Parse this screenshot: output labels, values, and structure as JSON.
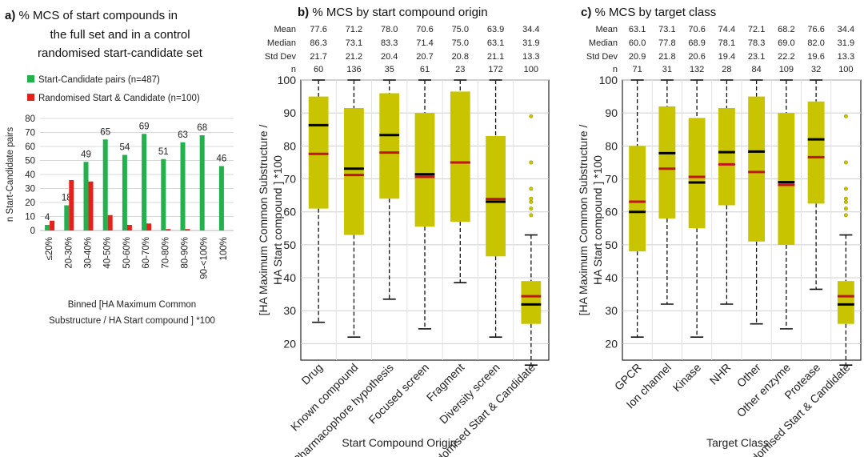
{
  "chart_data": [
    {
      "type": "bar",
      "panel_letter": "a)",
      "title_lines": [
        "% MCS of start compounds in",
        "the full set and in a control",
        "randomised start-candidate set"
      ],
      "ylabel": "n Start-Candidate pairs",
      "xlabel_lines": [
        "Binned [HA Maximum Common",
        "Substructure / HA Start compound ] *100"
      ],
      "ylim": [
        0,
        80
      ],
      "yticks": [
        0,
        10,
        20,
        30,
        40,
        50,
        60,
        70,
        80
      ],
      "grid": true,
      "legend_position": "top",
      "categories": [
        "≤20%",
        "20-30%",
        "30-40%",
        "40-50%",
        "50-60%",
        "60-70%",
        "70-80%",
        "80-90%",
        "90-<100%",
        "100%"
      ],
      "series": [
        {
          "name": "Start-Candidate pairs (n=487)",
          "color": "#22b14c",
          "values": [
            4,
            18,
            49,
            65,
            54,
            69,
            51,
            63,
            68,
            46
          ],
          "labels": [
            "4",
            "18",
            "49",
            "65",
            "54",
            "69",
            "51",
            "63",
            "68",
            "46"
          ]
        },
        {
          "name": "Randomised Start & Candidate (n=100)",
          "color": "#e8201c",
          "values": [
            7,
            36,
            35,
            11,
            4,
            5,
            1,
            1,
            0,
            0
          ]
        }
      ]
    },
    {
      "type": "box",
      "panel_letter": "b)",
      "title": "% MCS by start compound origin",
      "ylabel_lines": [
        "[HA Maximum Common Substructure /",
        "HA Start compound ] *100"
      ],
      "xlabel": "Start Compound Origin",
      "ylim": [
        15,
        100
      ],
      "yticks": [
        20,
        30,
        40,
        50,
        60,
        70,
        80,
        90,
        100
      ],
      "stats_rows": [
        {
          "label": "Mean",
          "values": [
            "77.6",
            "71.2",
            "78.0",
            "70.6",
            "75.0",
            "63.9",
            "34.4"
          ]
        },
        {
          "label": "Median",
          "values": [
            "86.3",
            "73.1",
            "83.3",
            "71.4",
            "75.0",
            "63.1",
            "31.9"
          ]
        },
        {
          "label": "Std Dev",
          "values": [
            "21.7",
            "21.2",
            "20.4",
            "20.7",
            "20.8",
            "21.1",
            "13.3"
          ]
        },
        {
          "label": "n",
          "values": [
            "60",
            "136",
            "35",
            "61",
            "23",
            "172",
            "100"
          ]
        }
      ],
      "categories": [
        "Drug",
        "Known compound",
        "Pharmacophore hypothesis",
        "Focused screen",
        "Fragment",
        "Diversity screen",
        "Randomised Start & Candidate"
      ],
      "boxes": [
        {
          "q1": 61,
          "q3": 95,
          "whisker_low": 26.5,
          "whisker_high": 100,
          "median": 86.3,
          "mean": 77.6,
          "outliers": []
        },
        {
          "q1": 53,
          "q3": 91.5,
          "whisker_low": 22,
          "whisker_high": 100,
          "median": 73.1,
          "mean": 71.2,
          "outliers": []
        },
        {
          "q1": 64,
          "q3": 96,
          "whisker_low": 33.5,
          "whisker_high": 100,
          "median": 83.3,
          "mean": 78.0,
          "outliers": []
        },
        {
          "q1": 55.5,
          "q3": 90,
          "whisker_low": 24.5,
          "whisker_high": 100,
          "median": 71.4,
          "mean": 70.6,
          "outliers": []
        },
        {
          "q1": 57,
          "q3": 96.5,
          "whisker_low": 38.5,
          "whisker_high": 100,
          "median": 75.0,
          "mean": 75.0,
          "outliers": []
        },
        {
          "q1": 46.5,
          "q3": 83,
          "whisker_low": 22,
          "whisker_high": 100,
          "median": 63.1,
          "mean": 63.9,
          "outliers": []
        },
        {
          "q1": 26,
          "q3": 39,
          "whisker_low": 13.5,
          "whisker_high": 53,
          "median": 31.9,
          "mean": 34.4,
          "outliers": [
            59,
            61,
            63,
            64,
            67,
            75,
            89
          ]
        }
      ],
      "box_color": "#c8c400",
      "median_color": "#000000",
      "mean_color": "#c0141e"
    },
    {
      "type": "box",
      "panel_letter": "c)",
      "title": "% MCS by target class",
      "ylabel_lines": [
        "[HA Maximum Common Substructure /",
        "HA Start compound ] *100"
      ],
      "xlabel": "Target Class",
      "ylim": [
        15,
        100
      ],
      "yticks": [
        20,
        30,
        40,
        50,
        60,
        70,
        80,
        90,
        100
      ],
      "stats_rows": [
        {
          "label": "Mean",
          "values": [
            "63.1",
            "73.1",
            "70.6",
            "74.4",
            "72.1",
            "68.2",
            "76.6",
            "34.4"
          ]
        },
        {
          "label": "Median",
          "values": [
            "60.0",
            "77.8",
            "68.9",
            "78.1",
            "78.3",
            "69.0",
            "82.0",
            "31.9"
          ]
        },
        {
          "label": "Std Dev",
          "values": [
            "20.9",
            "21.8",
            "20.6",
            "19.4",
            "23.1",
            "22.2",
            "19.6",
            "13.3"
          ]
        },
        {
          "label": "n",
          "values": [
            "71",
            "31",
            "132",
            "28",
            "84",
            "109",
            "32",
            "100"
          ]
        }
      ],
      "categories": [
        "GPCR",
        "Ion channel",
        "Kinase",
        "NHR",
        "Other",
        "Other enzyme",
        "Protease",
        "Randomised Start & Candidate"
      ],
      "boxes": [
        {
          "q1": 48,
          "q3": 80,
          "whisker_low": 22,
          "whisker_high": 100,
          "median": 60.0,
          "mean": 63.1,
          "outliers": []
        },
        {
          "q1": 58,
          "q3": 92,
          "whisker_low": 32,
          "whisker_high": 100,
          "median": 77.8,
          "mean": 73.1,
          "outliers": []
        },
        {
          "q1": 55,
          "q3": 88.5,
          "whisker_low": 22,
          "whisker_high": 100,
          "median": 68.9,
          "mean": 70.6,
          "outliers": []
        },
        {
          "q1": 62,
          "q3": 91.5,
          "whisker_low": 32,
          "whisker_high": 100,
          "median": 78.1,
          "mean": 74.4,
          "outliers": []
        },
        {
          "q1": 51,
          "q3": 95,
          "whisker_low": 26,
          "whisker_high": 100,
          "median": 78.3,
          "mean": 72.1,
          "outliers": []
        },
        {
          "q1": 50,
          "q3": 90,
          "whisker_low": 24.5,
          "whisker_high": 100,
          "median": 69.0,
          "mean": 68.2,
          "outliers": []
        },
        {
          "q1": 62.5,
          "q3": 93.5,
          "whisker_low": 36.5,
          "whisker_high": 100,
          "median": 82.0,
          "mean": 76.6,
          "outliers": []
        },
        {
          "q1": 26,
          "q3": 39,
          "whisker_low": 13.5,
          "whisker_high": 53,
          "median": 31.9,
          "mean": 34.4,
          "outliers": [
            59,
            61,
            63,
            64,
            67,
            75,
            89
          ]
        }
      ],
      "box_color": "#c8c400",
      "median_color": "#000000",
      "mean_color": "#c0141e"
    }
  ]
}
